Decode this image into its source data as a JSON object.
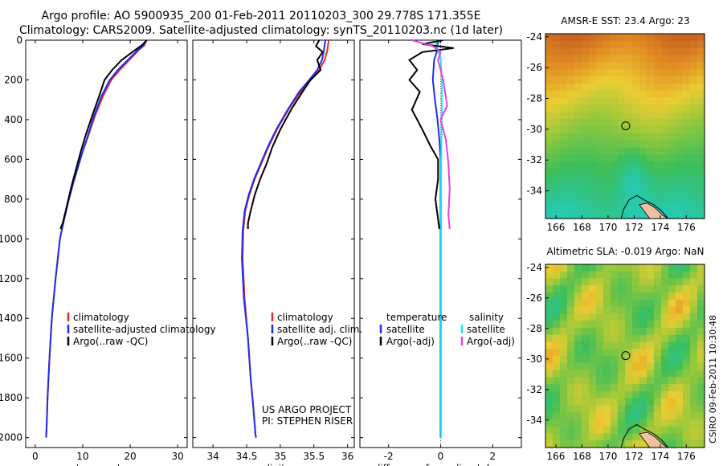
{
  "header": {
    "line1": "Argo profile: AO 5900935_200 01-Feb-2011 20110203_300 29.778S 171.355E",
    "line2": "Climatology: CARS2009. Satellite-adjusted climatology: synTS_20110203.nc (1d later)"
  },
  "footer_label": "CSIRO 09-Feb-2011 10:30:48",
  "colors": {
    "climatology": "#e8262b",
    "satellite": "#1d2ee8",
    "argo": "#000000",
    "sat_salinity": "#18e8f0",
    "argo_salinity": "#e840e0"
  },
  "chart_data": [
    {
      "type": "line",
      "id": "temperature",
      "xlabel": "temperature",
      "xlim": [
        -2,
        32
      ],
      "ylim": [
        2050,
        0
      ],
      "xticks": [
        0,
        10,
        20,
        30
      ],
      "yticks": [
        0,
        200,
        400,
        600,
        800,
        1000,
        1200,
        1400,
        1600,
        1800,
        2000
      ],
      "legend": [
        "climatology",
        "satellite-adjusted climatology",
        "Argo(..raw -QC)"
      ],
      "series": [
        {
          "name": "climatology",
          "color": "#e8262b",
          "x": [
            23.4,
            23.0,
            21.8,
            19.8,
            17.8,
            16.0,
            14.3,
            12.6,
            11.2,
            10.0,
            9.0,
            8.0,
            7.1,
            6.1,
            5.2,
            4.3,
            3.5,
            3.0,
            2.6,
            2.4,
            2.3
          ],
          "y": [
            0,
            25,
            50,
            100,
            150,
            200,
            280,
            380,
            480,
            560,
            640,
            720,
            800,
            900,
            1000,
            1200,
            1400,
            1600,
            1800,
            1950,
            2000
          ]
        },
        {
          "name": "satellite-adjusted climatology",
          "color": "#1d2ee8",
          "x": [
            23.3,
            22.8,
            21.6,
            19.5,
            17.4,
            15.7,
            14.0,
            12.4,
            11.1,
            10.0,
            9.0,
            8.0,
            7.1,
            6.1,
            5.2,
            4.3,
            3.5,
            3.0,
            2.6,
            2.4,
            2.3
          ],
          "y": [
            0,
            25,
            50,
            100,
            150,
            200,
            280,
            380,
            480,
            560,
            640,
            720,
            800,
            900,
            1000,
            1200,
            1400,
            1600,
            1800,
            1950,
            2000
          ]
        },
        {
          "name": "Argo(..raw -QC)",
          "color": "#000000",
          "x": [
            23.5,
            22.5,
            21.0,
            18.2,
            16.2,
            14.6,
            13.5,
            12.0,
            10.6,
            9.6,
            8.7,
            7.8,
            7.0,
            6.4,
            5.8,
            5.3
          ],
          "y": [
            0,
            25,
            50,
            100,
            150,
            200,
            280,
            380,
            480,
            560,
            640,
            720,
            800,
            860,
            920,
            950
          ]
        }
      ]
    },
    {
      "type": "line",
      "id": "salinity",
      "xlabel": "salinity",
      "xlim": [
        33.7,
        36.1
      ],
      "ylim": [
        2050,
        0
      ],
      "xticks": [
        34,
        34.5,
        35,
        35.5,
        36
      ],
      "yticks": [
        0,
        200,
        400,
        600,
        800,
        1000,
        1200,
        1400,
        1600,
        1800,
        2000
      ],
      "legend": [
        "climatology",
        "satellite adj. clim.",
        "Argo(..raw -QC)"
      ],
      "annotation": [
        "US ARGO PROJECT",
        "PI: STEPHEN RISER"
      ],
      "series": [
        {
          "name": "climatology",
          "color": "#e8262b",
          "x": [
            35.72,
            35.7,
            35.66,
            35.58,
            35.45,
            35.3,
            35.12,
            34.95,
            34.82,
            34.72,
            34.62,
            34.54,
            34.48,
            34.45,
            34.44,
            34.47,
            34.52,
            34.56,
            34.6,
            34.63,
            34.64
          ],
          "y": [
            0,
            50,
            100,
            150,
            200,
            260,
            350,
            450,
            540,
            620,
            700,
            780,
            860,
            960,
            1100,
            1300,
            1500,
            1700,
            1850,
            1980,
            2000
          ]
        },
        {
          "name": "satellite adj. clim.",
          "color": "#1d2ee8",
          "x": [
            35.67,
            35.65,
            35.62,
            35.55,
            35.43,
            35.28,
            35.11,
            34.94,
            34.81,
            34.71,
            34.61,
            34.53,
            34.47,
            34.44,
            34.43,
            34.46,
            34.52,
            34.56,
            34.6,
            34.63,
            34.64
          ],
          "y": [
            0,
            50,
            100,
            150,
            200,
            260,
            350,
            450,
            540,
            620,
            700,
            780,
            860,
            960,
            1100,
            1300,
            1500,
            1700,
            1850,
            1980,
            2000
          ]
        },
        {
          "name": "Argo(..raw -QC)",
          "color": "#000000",
          "x": [
            35.58,
            35.53,
            35.63,
            35.55,
            35.6,
            35.45,
            35.33,
            35.16,
            35.0,
            34.88,
            34.8,
            34.7,
            34.62,
            34.56,
            34.52,
            34.52
          ],
          "y": [
            0,
            30,
            60,
            100,
            150,
            200,
            260,
            350,
            450,
            540,
            620,
            700,
            780,
            860,
            920,
            950
          ]
        }
      ]
    },
    {
      "type": "line",
      "id": "difference",
      "xlabel": "difference from climatology",
      "xlim": [
        -3.1,
        3.1
      ],
      "ylim": [
        2050,
        0
      ],
      "xticks": [
        -2,
        0,
        2
      ],
      "yticks": [
        0,
        200,
        400,
        600,
        800,
        1000,
        1200,
        1400,
        1600,
        1800,
        2000
      ],
      "legend_left": [
        "temperature",
        "satellite",
        "Argo(-adj)"
      ],
      "legend_right": [
        "salinity",
        "satellite",
        "Argo(-adj)"
      ],
      "series": [
        {
          "name": "temperature satellite",
          "color": "#1d2ee8",
          "x": [
            -0.05,
            -0.15,
            -0.15,
            -0.25,
            -0.3,
            -0.22,
            -0.12,
            -0.05,
            0,
            0,
            0,
            0,
            0,
            0,
            0
          ],
          "y": [
            0,
            30,
            60,
            100,
            200,
            300,
            400,
            500,
            600,
            700,
            800,
            1000,
            1400,
            1800,
            2000
          ]
        },
        {
          "name": "salinity satellite",
          "color": "#18e8f0",
          "x": [
            -0.2,
            -0.1,
            0.0,
            0.05,
            0.05,
            0.04,
            0.03,
            0.02,
            0.02,
            0.02,
            0.02,
            0.02
          ],
          "y": [
            0,
            50,
            100,
            200,
            300,
            400,
            500,
            600,
            800,
            1200,
            1600,
            2000
          ]
        },
        {
          "name": "temperature Argo(-adj)",
          "color": "#000000",
          "x": [
            0.1,
            -0.7,
            0.5,
            -0.7,
            -1.2,
            -0.9,
            -1.2,
            -0.8,
            -1.1,
            -0.7,
            -0.4,
            -0.1,
            -0.1,
            -0.2,
            -0.1,
            -0.05
          ],
          "y": [
            0,
            20,
            40,
            60,
            100,
            150,
            200,
            260,
            350,
            450,
            530,
            600,
            700,
            800,
            900,
            950
          ]
        },
        {
          "name": "salinity Argo(-adj)",
          "color": "#e840e0",
          "x": [
            -1.1,
            -0.3,
            0.0,
            -0.1,
            0.1,
            0.25,
            0.0,
            0.2,
            0.3,
            0.35,
            0.3,
            0.35
          ],
          "y": [
            0,
            30,
            60,
            100,
            200,
            330,
            400,
            500,
            620,
            750,
            880,
            950
          ]
        }
      ]
    },
    {
      "type": "heatmap",
      "id": "sst-map",
      "title": "AMSR-E SST: 23.4 Argo: 23",
      "xlim": [
        165.2,
        177.4
      ],
      "ylim": [
        -35.8,
        -23.8
      ],
      "xticks": [
        166,
        168,
        170,
        172,
        174,
        176
      ],
      "yticks": [
        -24,
        -26,
        -28,
        -30,
        -32,
        -34
      ],
      "marker": {
        "lon": 171.355,
        "lat": -29.778
      }
    },
    {
      "type": "heatmap",
      "id": "sla-map",
      "title": "Altimetric SLA: -0.019 Argo: NaN",
      "xlim": [
        165.2,
        177.4
      ],
      "ylim": [
        -35.8,
        -23.8
      ],
      "xticks": [
        166,
        168,
        170,
        172,
        174,
        176
      ],
      "yticks": [
        -24,
        -26,
        -28,
        -30,
        -32,
        -34
      ],
      "marker": {
        "lon": 171.355,
        "lat": -29.778
      }
    }
  ]
}
